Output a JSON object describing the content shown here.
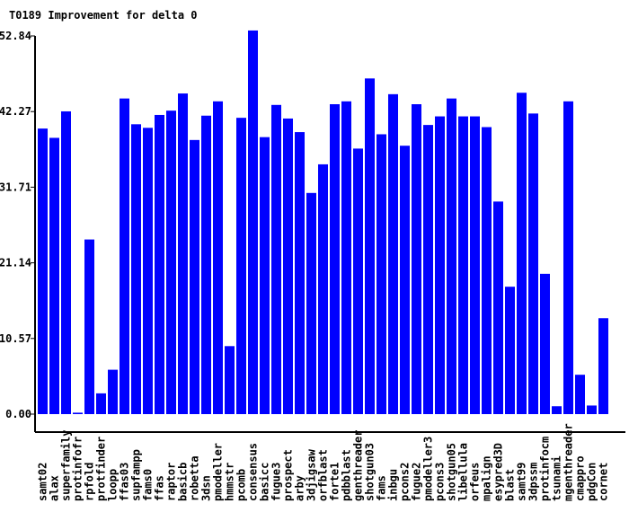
{
  "chart_data": {
    "type": "bar",
    "title": "T0189 Improvement for delta 0",
    "xlabel": "",
    "ylabel": "",
    "ylim": [
      0,
      52.84
    ],
    "yticks": [
      "0.00",
      "10.57",
      "21.14",
      "31.71",
      "42.27",
      "52.84"
    ],
    "ytick_values": [
      0,
      10.57,
      21.14,
      31.71,
      42.27,
      52.84
    ],
    "bar_color": "#0000ff",
    "grid": false,
    "categories": [
      "samt02",
      "alax",
      "superfamily",
      "protinfofr",
      "rpfold",
      "protfinder",
      "loopp",
      "ffas03",
      "supfampp",
      "fams0",
      "ffas",
      "raptor",
      "basicb",
      "robetta",
      "3dsn",
      "pmodeller",
      "hmmstr",
      "pcomb",
      "consensus",
      "basicc",
      "fugue3",
      "prospect",
      "arby",
      "3djigsaw",
      "orfblast",
      "forte1",
      "pdbblast",
      "genthreader",
      "shotgun03",
      "fams",
      "inbgu",
      "pcons2",
      "fugue2",
      "pmodeller3",
      "pcons3",
      "shotgun05",
      "libellula",
      "orfeus",
      "mpalign",
      "esypred3D",
      "blast",
      "samt99",
      "3dpssm",
      "protinfocm",
      "tsunami",
      "mgenthreader",
      "cmappro",
      "pdgCon",
      "cornet"
    ],
    "values": [
      39.9,
      38.6,
      42.3,
      0.2,
      24.4,
      2.9,
      6.2,
      44.1,
      40.5,
      40.0,
      41.8,
      42.4,
      44.8,
      38.3,
      41.7,
      43.7,
      9.5,
      41.4,
      53.6,
      38.7,
      43.2,
      41.3,
      39.4,
      30.9,
      34.9,
      43.3,
      43.7,
      37.1,
      46.9,
      39.1,
      44.7,
      37.5,
      43.3,
      40.4,
      41.6,
      44.1,
      41.6,
      41.6,
      40.1,
      29.7,
      17.8,
      44.9,
      42.0,
      19.6,
      1.1,
      43.7,
      5.5,
      1.2,
      13.4
    ]
  }
}
